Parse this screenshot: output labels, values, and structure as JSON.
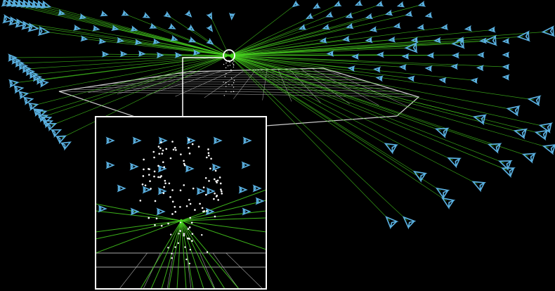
{
  "scene": {
    "background": "#000000",
    "colors": {
      "camera": "#5ab0e0",
      "ray": "#47d11f",
      "grid": "#d0d0d0",
      "point": "#ffffff",
      "frame": "#ffffff"
    },
    "icons": {
      "camera": "camera-frustum-icon",
      "target": "target-ring-icon"
    }
  }
}
